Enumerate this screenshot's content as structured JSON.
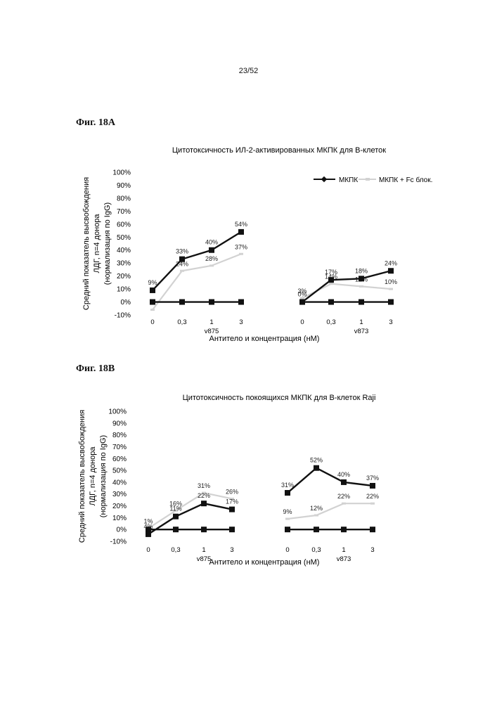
{
  "page_number": "23/52",
  "figures": [
    {
      "label": "Фиг. 18A"
    },
    {
      "label": "Фиг. 18B"
    }
  ],
  "chart_data": [
    {
      "type": "line",
      "title": "Цитотоксичность ИЛ-2-активированных МКПК для B-клеток",
      "xlabel": "Антитело и концентрация (нМ)",
      "ylabel": [
        "Средний показатель высвобождения",
        "ЛДГ, n=4 донора",
        "(нормализация по IgG)"
      ],
      "y_ticks": [
        "100%",
        "90%",
        "80%",
        "70%",
        "60%",
        "50%",
        "40%",
        "30%",
        "20%",
        "10%",
        "0%",
        "-10%"
      ],
      "ylim": [
        -10,
        100
      ],
      "legend_position": "top-right",
      "groups": [
        {
          "name": "v875",
          "x_labels": [
            "0",
            "0,3",
            "1",
            "3"
          ]
        },
        {
          "name": "v873",
          "x_labels": [
            "0",
            "0,3",
            "1",
            "3"
          ]
        }
      ],
      "series": [
        {
          "name": "МКПК",
          "style": "black",
          "groups": [
            [
              9,
              33,
              40,
              54
            ],
            [
              0,
              17,
              18,
              24
            ]
          ],
          "labels": [
            [
              "9%",
              "33%",
              "40%",
              "54%"
            ],
            [
              "0%",
              "17%",
              "18%",
              "24%"
            ]
          ]
        },
        {
          "name": "МКПК + Fc блок.",
          "style": "lightgray",
          "groups": [
            [
              -6,
              24,
              28,
              37
            ],
            [
              3,
              14,
              12,
              10
            ]
          ],
          "labels": [
            [
              "",
              "24%",
              "28%",
              "37%"
            ],
            [
              "3%",
              "14%",
              "12%",
              "10%"
            ]
          ]
        },
        {
          "name": "",
          "style": "black",
          "groups": [
            [
              0,
              0,
              0,
              0
            ],
            [
              0,
              0,
              0,
              0
            ]
          ],
          "labels": [
            [
              "",
              "",
              "",
              ""
            ],
            [
              "",
              "",
              "",
              ""
            ]
          ]
        }
      ],
      "colors": {
        "black": "#111111",
        "lightgray": "#d2d2d2"
      }
    },
    {
      "type": "line",
      "title": "Цитотоксичность покоящихся МКПК для B-клеток Raji",
      "xlabel": "Антитело и концентрация (нМ)",
      "ylabel": [
        "Средний показатель высвобождения",
        "ЛДГ, n=4 донора",
        "(нормализация по IgG)"
      ],
      "y_ticks": [
        "100%",
        "90%",
        "80%",
        "70%",
        "60%",
        "50%",
        "40%",
        "30%",
        "20%",
        "10%",
        "0%",
        "-10%"
      ],
      "ylim": [
        -10,
        100
      ],
      "groups": [
        {
          "name": "v875",
          "x_labels": [
            "0",
            "0,3",
            "1",
            "3"
          ]
        },
        {
          "name": "v873",
          "x_labels": [
            "0",
            "0,3",
            "1",
            "3"
          ]
        }
      ],
      "series": [
        {
          "name": "МКПК",
          "style": "black",
          "groups": [
            [
              -4,
              11,
              22,
              17
            ],
            [
              31,
              52,
              40,
              37
            ]
          ],
          "labels": [
            [
              "4%",
              "11%",
              "22%",
              "17%"
            ],
            [
              "31%",
              "52%",
              "40%",
              "37%"
            ]
          ]
        },
        {
          "name": "МКПК + Fc блок.",
          "style": "lightgray",
          "groups": [
            [
              1,
              16,
              31,
              26
            ],
            [
              9,
              12,
              22,
              22
            ]
          ],
          "labels": [
            [
              "1%",
              "16%",
              "31%",
              "26%"
            ],
            [
              "9%",
              "12%",
              "22%",
              "22%"
            ]
          ]
        },
        {
          "name": "",
          "style": "black",
          "groups": [
            [
              0,
              0,
              0,
              0
            ],
            [
              0,
              0,
              0,
              0
            ]
          ],
          "labels": [
            [
              "",
              "",
              "",
              ""
            ],
            [
              "",
              "",
              "",
              ""
            ]
          ]
        }
      ],
      "colors": {
        "black": "#111111",
        "lightgray": "#d2d2d2"
      }
    }
  ]
}
